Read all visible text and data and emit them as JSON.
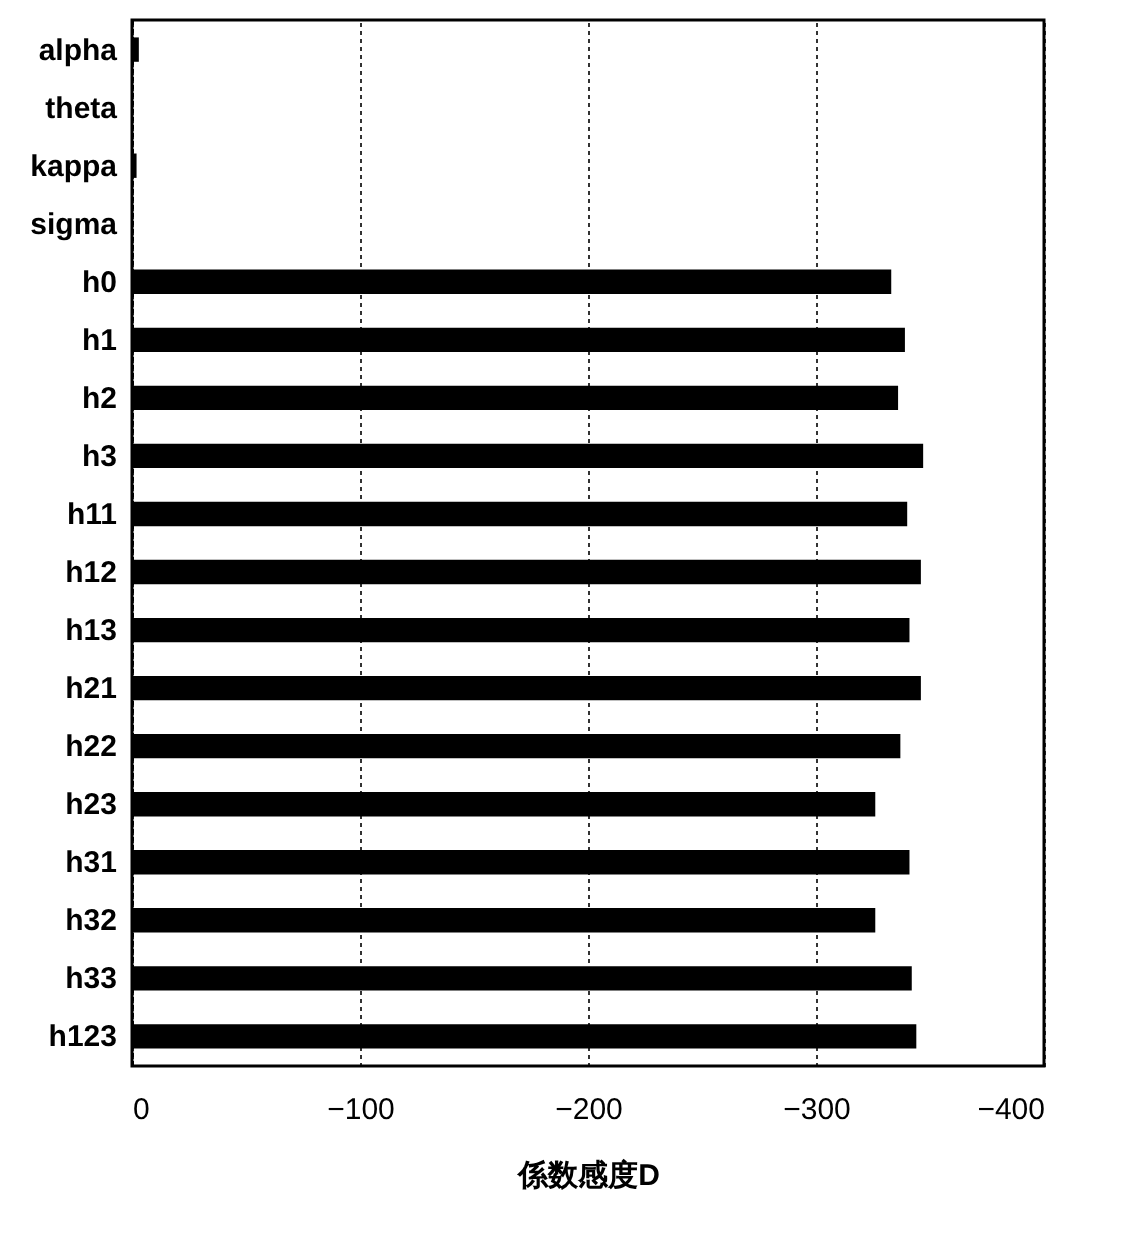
{
  "chart_data": {
    "type": "bar",
    "orientation": "horizontal",
    "xlabel": "係数感度D",
    "categories": [
      "alpha",
      "theta",
      "kappa",
      "sigma",
      "h0",
      "h1",
      "h2",
      "h3",
      "h11",
      "h12",
      "h13",
      "h21",
      "h22",
      "h23",
      "h31",
      "h32",
      "h33",
      "h123"
    ],
    "values": [
      -3,
      0,
      -2,
      0,
      -333,
      -339,
      -336,
      -347,
      -340,
      -346,
      -341,
      -346,
      -337,
      -326,
      -341,
      -326,
      -342,
      -344
    ],
    "color": "#000000",
    "xlim": [
      0,
      -400
    ],
    "xticks": [
      0,
      -100,
      -200,
      -300,
      -400
    ],
    "grid": "x"
  }
}
